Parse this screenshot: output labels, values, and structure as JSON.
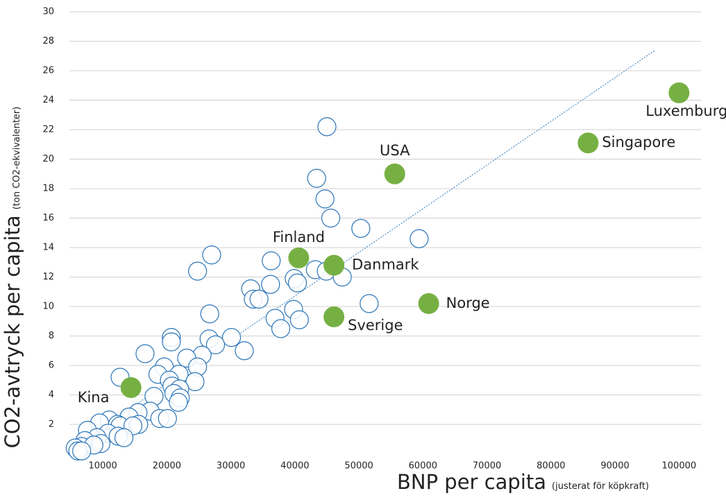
{
  "chart_data": {
    "type": "scatter",
    "x_label": "BNP per capita",
    "x_label_note": "(justerat för köpkraft)",
    "y_label": "CO2-avtryck per capita",
    "y_label_note": "(ton CO2-ekvivalenter)",
    "xlim": [
      5000,
      103000
    ],
    "xticks": [
      10000,
      20000,
      30000,
      40000,
      50000,
      60000,
      70000,
      80000,
      90000,
      100000
    ],
    "ylim": [
      0,
      30
    ],
    "yticks": [
      2,
      4,
      6,
      8,
      10,
      12,
      14,
      16,
      18,
      20,
      22,
      24,
      26,
      28,
      30
    ],
    "grid": true,
    "series": [
      {
        "color": "#2a75b8",
        "x": [
          45000,
          43400,
          44700,
          45600,
          50300,
          59400,
          27000,
          36300,
          24800,
          43200,
          44900,
          47400,
          39900,
          40400,
          36200,
          33100,
          33500,
          34400,
          51600,
          39800,
          26700,
          36900,
          40700,
          37800,
          20700,
          30100,
          26600,
          20700,
          27600,
          16600,
          32100,
          25500,
          23100,
          24800,
          19600,
          12700,
          18600,
          21900,
          20400,
          20800,
          24400,
          22000,
          21100,
          22100,
          18000,
          21800,
          17400,
          15500,
          14100,
          18900,
          20100,
          11000,
          12300,
          9500,
          15600,
          12700,
          14700,
          7600,
          10800,
          12400,
          13300,
          9100,
          7200,
          9700,
          6700,
          8600,
          5700,
          6100,
          6700
        ],
        "values": [
          22.2,
          18.7,
          17.3,
          16.0,
          15.3,
          14.6,
          13.5,
          13.1,
          12.4,
          12.5,
          12.4,
          12.0,
          11.9,
          11.6,
          11.5,
          11.2,
          10.5,
          10.5,
          10.2,
          9.8,
          9.5,
          9.2,
          9.1,
          8.5,
          7.9,
          7.9,
          7.8,
          7.6,
          7.4,
          6.8,
          7.0,
          6.7,
          6.5,
          5.9,
          5.9,
          5.2,
          5.4,
          5.4,
          5.0,
          4.6,
          4.9,
          4.4,
          4.1,
          3.8,
          3.9,
          3.5,
          2.9,
          2.8,
          2.5,
          2.4,
          2.4,
          2.3,
          2.0,
          2.1,
          2.0,
          1.9,
          1.9,
          1.6,
          1.4,
          1.2,
          1.1,
          1.1,
          0.9,
          0.7,
          0.5,
          0.6,
          0.4,
          0.2,
          0.2
        ]
      },
      {
        "color": "#76b043",
        "labels": [
          "Luxemburg",
          "Singapore",
          "USA",
          "Finland",
          "Danmark",
          "Norge",
          "Sverige",
          "Kina"
        ],
        "x": [
          100000,
          85800,
          55600,
          40600,
          46100,
          60900,
          46100,
          14400
        ],
        "values": [
          24.5,
          21.1,
          19.0,
          13.3,
          12.8,
          10.2,
          9.3,
          4.5
        ]
      }
    ],
    "trendline": {
      "color": "#2a75b8",
      "x": [
        8600,
        96300
      ],
      "values": [
        1.4,
        27.4
      ]
    }
  }
}
